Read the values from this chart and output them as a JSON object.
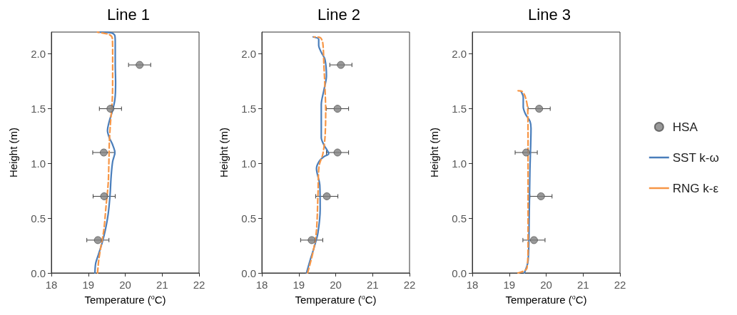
{
  "chart_data": [
    {
      "type": "line",
      "title": "Line 1",
      "xlabel": "Temperature ($^{o}$C)",
      "ylabel": "Height (m)",
      "xlim": [
        18,
        22
      ],
      "xticks": [
        18,
        19,
        20,
        21,
        22
      ],
      "ylim": [
        0,
        2.2
      ],
      "yticks": [
        {
          "value": 0,
          "label": "0.0"
        },
        {
          "value": 0.5,
          "label": "0.5"
        },
        {
          "value": 1,
          "label": "1.0"
        },
        {
          "value": 1.5,
          "label": "1.5"
        },
        {
          "value": 2,
          "label": "2.0"
        }
      ],
      "grid": false,
      "legend": false,
      "series": [
        {
          "type": "scatter",
          "color": "#808080",
          "marker": "circle",
          "x": [
            20.39,
            19.6,
            19.42,
            19.43,
            19.26
          ],
          "values": [
            1.9,
            1.5,
            1.1,
            0.7,
            0.3
          ],
          "xerrors": [
            0.3,
            0.3,
            0.3,
            0.3,
            0.3
          ]
        },
        {
          "color": "#4a7ebb",
          "line_style": "solid",
          "marker": "none",
          "x": [
            19.18,
            19.2,
            19.28,
            19.38,
            19.46,
            19.54,
            19.59,
            19.62,
            19.66,
            19.72,
            19.66,
            19.57,
            19.52,
            19.57,
            19.65,
            19.72,
            19.74,
            19.73,
            19.73,
            19.72,
            19.63,
            19.28
          ],
          "values": [
            0,
            0.087,
            0.173,
            0.282,
            0.39,
            0.542,
            0.715,
            0.888,
            1.018,
            1.1,
            1.17,
            1.235,
            1.3,
            1.387,
            1.474,
            1.582,
            1.734,
            1.907,
            2.101,
            2.167,
            2.193,
            2.199
          ]
        },
        {
          "color": "#f79646",
          "line_style": "dashed",
          "marker": "none",
          "x": [
            19.25,
            19.28,
            19.34,
            19.42,
            19.48,
            19.54,
            19.56,
            19.57,
            19.6,
            19.65,
            19.66,
            19.66,
            19.65,
            19.57,
            19.25
          ],
          "values": [
            0,
            0.108,
            0.238,
            0.39,
            0.607,
            0.823,
            1.04,
            1.192,
            1.365,
            1.582,
            1.799,
            2.015,
            2.145,
            2.177,
            2.199
          ]
        }
      ]
    },
    {
      "type": "line",
      "title": "Line 2",
      "xlabel": "Temperature ($^{o}$C)",
      "ylabel": "Height (m)",
      "xlim": [
        18,
        22
      ],
      "xticks": [
        18,
        19,
        20,
        21,
        22
      ],
      "ylim": [
        0,
        2.2
      ],
      "yticks": [
        {
          "value": 0,
          "label": "0.0"
        },
        {
          "value": 0.5,
          "label": "0.5"
        },
        {
          "value": 1,
          "label": "1.0"
        },
        {
          "value": 1.5,
          "label": "1.5"
        },
        {
          "value": 2,
          "label": "2.0"
        }
      ],
      "grid": false,
      "legend": false,
      "series": [
        {
          "type": "scatter",
          "color": "#808080",
          "marker": "circle",
          "x": [
            20.14,
            20.05,
            20.05,
            19.76,
            19.35
          ],
          "values": [
            1.9,
            1.5,
            1.1,
            0.7,
            0.3
          ],
          "xerrors": [
            0.3,
            0.3,
            0.3,
            0.3,
            0.3
          ]
        },
        {
          "color": "#4a7ebb",
          "line_style": "solid",
          "marker": "none",
          "x": [
            19.21,
            19.32,
            19.42,
            19.52,
            19.58,
            19.57,
            19.48,
            19.55,
            19.68,
            19.81,
            19.68,
            19.61,
            19.61,
            19.61,
            19.68,
            19.75,
            19.71,
            19.61,
            19.54,
            19.54,
            19.39
          ],
          "values": [
            0,
            0.13,
            0.238,
            0.368,
            0.585,
            0.802,
            0.953,
            1.018,
            1.062,
            1.088,
            1.17,
            1.235,
            1.365,
            1.538,
            1.668,
            1.798,
            1.95,
            2.015,
            2.08,
            2.134,
            2.156
          ]
        },
        {
          "color": "#f79646",
          "line_style": "dashed",
          "marker": "none",
          "x": [
            19.24,
            19.39,
            19.48,
            19.52,
            19.55,
            19.65,
            19.71,
            19.73,
            19.71,
            19.68,
            19.65,
            19.58,
            19.41
          ],
          "values": [
            0,
            0.195,
            0.39,
            0.715,
            0.975,
            1.083,
            1.235,
            1.473,
            1.69,
            1.907,
            2.102,
            2.15,
            2.156
          ]
        }
      ]
    },
    {
      "type": "line",
      "title": "Line 3",
      "xlabel": "Temperature ($^{o}$C)",
      "ylabel": "Height (m)",
      "xlim": [
        18,
        22
      ],
      "xticks": [
        18,
        19,
        20,
        21,
        22
      ],
      "ylim": [
        0,
        2.2
      ],
      "yticks": [
        {
          "value": 0,
          "label": "0.0"
        },
        {
          "value": 0.5,
          "label": "0.5"
        },
        {
          "value": 1,
          "label": "1.0"
        },
        {
          "value": 1.5,
          "label": "1.5"
        },
        {
          "value": 2,
          "label": "2.0"
        }
      ],
      "grid": false,
      "legend": "right",
      "series": [
        {
          "name": "HSA",
          "type": "scatter",
          "color": "#808080",
          "marker": "circle",
          "x": [
            19.81,
            19.46,
            19.86,
            19.67
          ],
          "values": [
            1.5,
            1.1,
            0.7,
            0.3
          ],
          "xerrors": [
            0.3,
            0.3,
            0.3,
            0.3
          ]
        },
        {
          "name": "SST k-ω",
          "color": "#4a7ebb",
          "line_style": "solid",
          "marker": "none",
          "x": [
            19.41,
            19.51,
            19.54,
            19.56,
            19.59,
            19.56,
            19.44,
            19.38,
            19.38,
            19.32
          ],
          "values": [
            0,
            0.108,
            0.498,
            0.932,
            1.322,
            1.387,
            1.452,
            1.517,
            1.603,
            1.658
          ]
        },
        {
          "name": "RNG k-ε",
          "color": "#f79646",
          "line_style": "dashed",
          "marker": "none",
          "x": [
            19.24,
            19.48,
            19.51,
            19.51,
            19.51,
            19.5,
            19.44,
            19.35,
            19.24
          ],
          "values": [
            0,
            0.043,
            0.282,
            0.715,
            1.148,
            1.495,
            1.603,
            1.658,
            1.664
          ]
        }
      ]
    }
  ]
}
